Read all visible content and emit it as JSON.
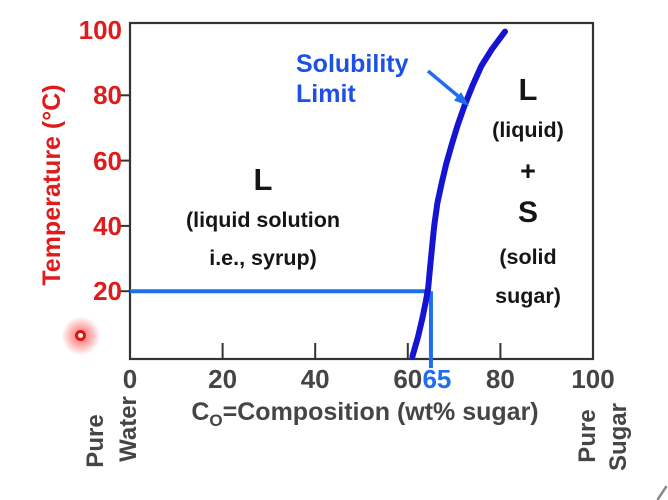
{
  "chart_data": {
    "type": "line",
    "title": "",
    "ylabel": "Temperature (°C)",
    "xlabel": {
      "c": "C",
      "sub": "O",
      "rest": "=Composition (wt% sugar)"
    },
    "xlim": [
      0,
      100
    ],
    "ylim": [
      0,
      100
    ],
    "grid": false,
    "legend": false,
    "x_axis": {
      "tick_marks": [
        20,
        40,
        60,
        80
      ],
      "tick_labels": [
        {
          "value": 0,
          "text": "0"
        },
        {
          "value": 20,
          "text": "20"
        },
        {
          "value": 40,
          "text": "40"
        },
        {
          "value": 60,
          "text": "60"
        },
        {
          "value": 65,
          "text": "65",
          "highlight": true
        },
        {
          "value": 80,
          "text": "80"
        },
        {
          "value": 100,
          "text": "100"
        }
      ]
    },
    "y_axis": {
      "tick_marks": [
        20,
        40,
        60,
        80
      ],
      "tick_labels": [
        {
          "value": 100,
          "text": "100"
        },
        {
          "value": 80,
          "text": "80"
        },
        {
          "value": 60,
          "text": "60"
        },
        {
          "value": 40,
          "text": "40"
        },
        {
          "value": 20,
          "text": "20"
        }
      ]
    },
    "series": [
      {
        "name": "Solubility Limit",
        "points": [
          [
            61,
            0
          ],
          [
            62.2,
            6
          ],
          [
            63.2,
            12
          ],
          [
            63.9,
            17
          ],
          [
            64.4,
            21
          ],
          [
            64.8,
            27
          ],
          [
            65.2,
            33
          ],
          [
            65.7,
            40
          ],
          [
            66.4,
            47
          ],
          [
            67.3,
            53
          ],
          [
            68.3,
            59
          ],
          [
            69.5,
            65
          ],
          [
            70.8,
            71
          ],
          [
            72.3,
            77
          ],
          [
            74,
            83
          ],
          [
            75.9,
            89
          ],
          [
            78.1,
            94
          ],
          [
            80.2,
            98
          ],
          [
            81,
            99.5
          ]
        ]
      }
    ],
    "highlight": {
      "composition": 65,
      "temperature": 20
    }
  },
  "annotations": {
    "solubility_label": {
      "line1": "Solubility",
      "line2": "Limit"
    },
    "region_liquid": {
      "symbol": "L",
      "desc1": "(liquid solution",
      "desc2": "i.e., syrup)"
    },
    "region_two_phase": {
      "symbol_l": "L",
      "desc_l": "(liquid)",
      "plus": "+",
      "symbol_s": "S",
      "desc_s1": "(solid",
      "desc_s2": "sugar)"
    },
    "pure_water": {
      "word1": "Pure",
      "word2": "Water"
    },
    "pure_sugar": {
      "word1": "Pure",
      "word2": "Sugar"
    }
  },
  "colors": {
    "axis_label_red": "#df1b1b",
    "tick_gray": "#454545",
    "curve_blue": "#1414d2",
    "accent_blue": "#1e6eee",
    "callout_blue": "#1d50e6",
    "region_black": "#151515",
    "pointer_red": "#e01212"
  }
}
